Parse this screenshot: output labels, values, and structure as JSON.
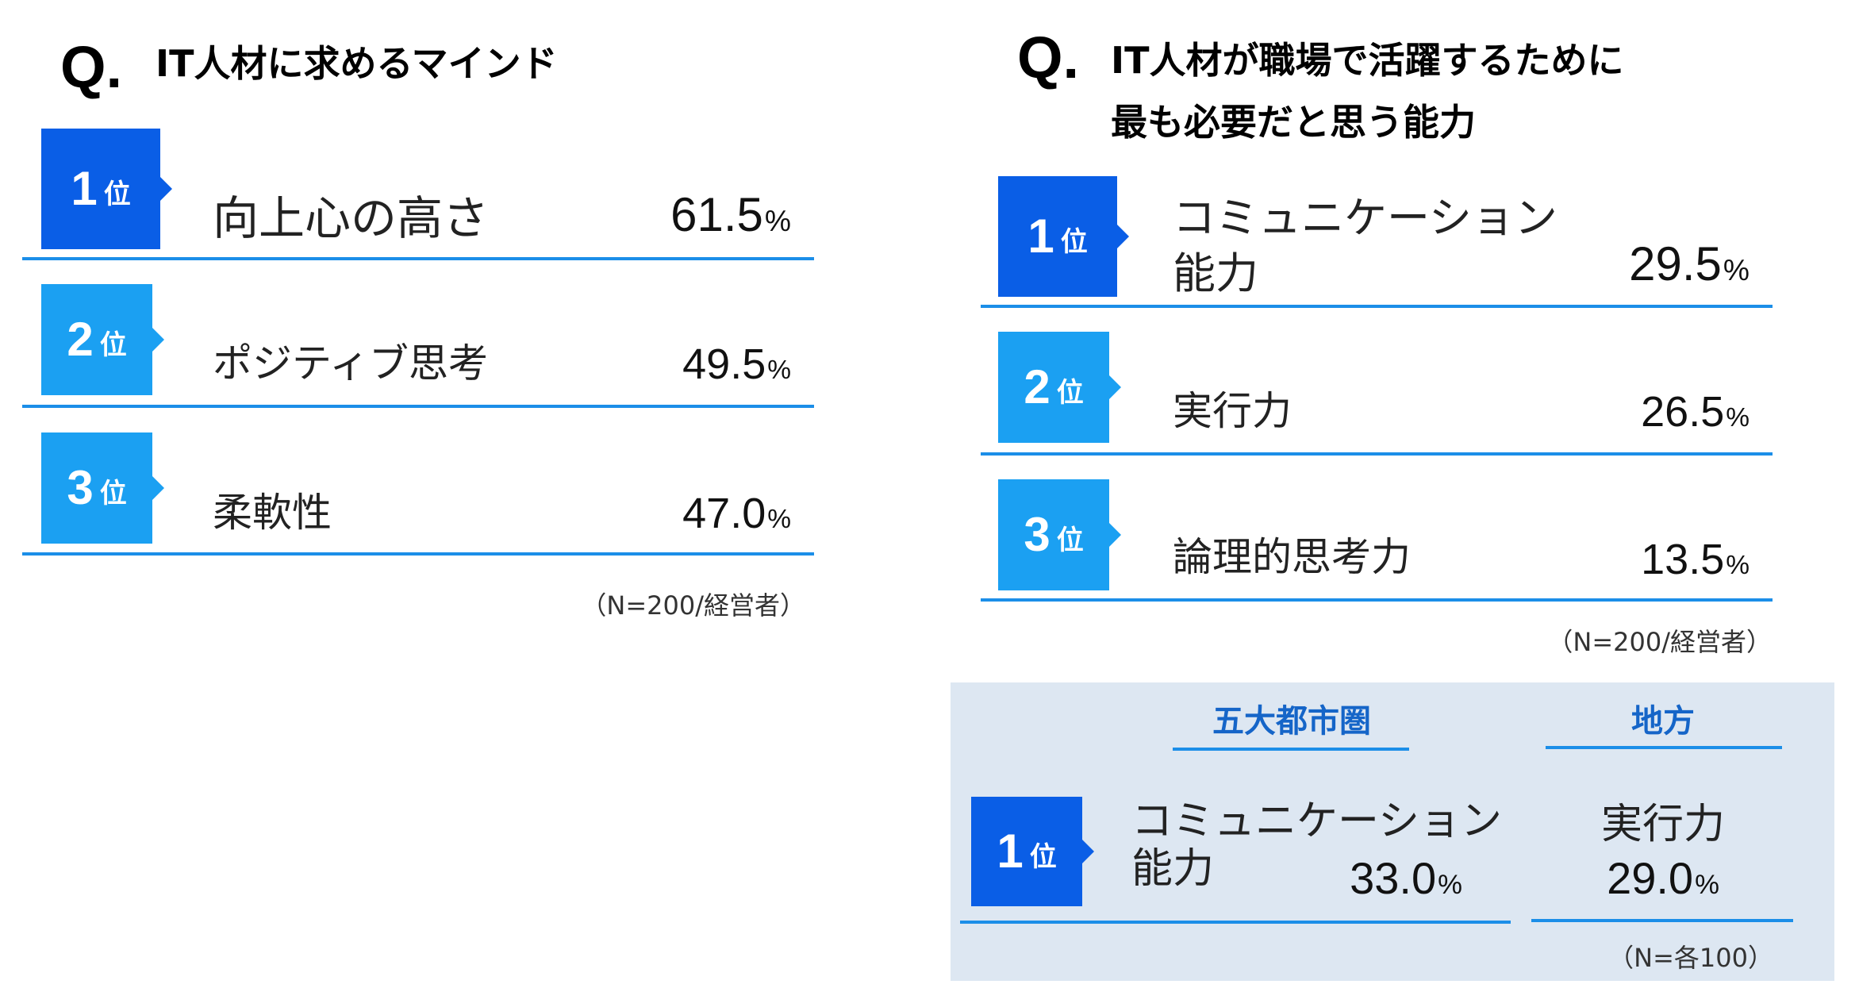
{
  "chart_data": [
    {
      "type": "table",
      "question_mark": "Q.",
      "title": "IT人材に求めるマインド",
      "rank_unit": "位",
      "percent_sign": "%",
      "rows": [
        {
          "rank": "1",
          "label": "向上心の高さ",
          "value": "61.5"
        },
        {
          "rank": "2",
          "label": "ポジティブ思考",
          "value": "49.5"
        },
        {
          "rank": "3",
          "label": "柔軟性",
          "value": "47.0"
        }
      ],
      "note": "（N=200/経営者）"
    },
    {
      "type": "table",
      "question_mark": "Q.",
      "title_lines": [
        "IT人材が職場で活躍するために",
        "最も必要だと思う能力"
      ],
      "rank_unit": "位",
      "percent_sign": "%",
      "rows": [
        {
          "rank": "1",
          "label_lines": [
            "コミュニケーション",
            "能力"
          ],
          "value": "29.5"
        },
        {
          "rank": "2",
          "label": "実行力",
          "value": "26.5"
        },
        {
          "rank": "3",
          "label": "論理的思考力",
          "value": "13.5"
        }
      ],
      "note": "（N=200/経営者）"
    },
    {
      "type": "table",
      "columns": [
        "五大都市圏",
        "地方"
      ],
      "rank": "1",
      "rank_unit": "位",
      "percent_sign": "%",
      "cells": [
        {
          "label_lines": [
            "コミュニケーション",
            "能力"
          ],
          "value": "33.0"
        },
        {
          "label": "実行力",
          "value": "29.0"
        }
      ],
      "note": "（N=各100）"
    }
  ],
  "colors": {
    "rank1": "#0a5ee6",
    "rank23": "#1ba0f2",
    "rule": "#1b8ee8",
    "panel": "#dde7f2",
    "region_text": "#1565c8"
  }
}
